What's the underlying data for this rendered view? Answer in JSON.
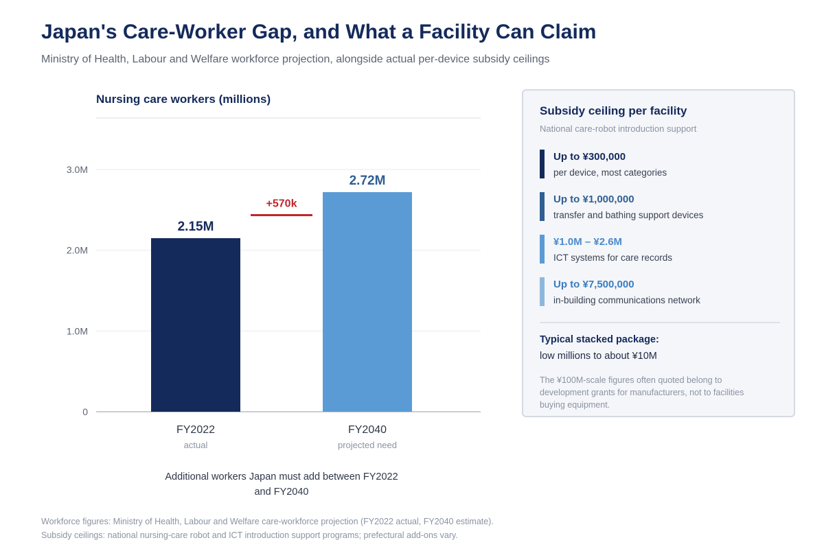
{
  "header": {
    "title": "Japan's Care-Worker Gap, and What a Facility Can Claim",
    "subtitle": "Ministry of Health, Labour and Welfare workforce projection, alongside actual per-device subsidy ceilings"
  },
  "chart_data": {
    "type": "bar",
    "title": "Nursing care workers (millions)",
    "categories": [
      "FY2022",
      "FY2040"
    ],
    "category_sublabels": [
      "actual",
      "projected need"
    ],
    "values": [
      2.15,
      2.72
    ],
    "value_labels": [
      "2.15M",
      "2.72M"
    ],
    "bar_colors": [
      "#142a5b",
      "#5b9bd5"
    ],
    "ylim": [
      0,
      3.4
    ],
    "yticks": [
      0,
      1.0,
      2.0,
      3.0
    ],
    "ytick_labels": [
      "0",
      "1.0M",
      "2.0M",
      "3.0M"
    ],
    "gridlines": true,
    "gap_annotation": {
      "label": "+570k",
      "color": "#c0262d"
    },
    "note": "Additional workers Japan must add between FY2022 and FY2040"
  },
  "panel": {
    "title": "Subsidy ceiling per facility",
    "subtitle": "National care-robot introduction support",
    "tiers": [
      {
        "amount": "Up to ¥300,000",
        "desc": "per device, most categories",
        "color": "#142a5b"
      },
      {
        "amount": "Up to ¥1,000,000",
        "desc": "transfer and bathing support devices",
        "color": "#2f5f93"
      },
      {
        "amount": "¥1.0M – ¥2.6M",
        "desc": "ICT systems for care records",
        "color": "#5b9bd5"
      },
      {
        "amount": "Up to ¥7,500,000",
        "desc": "in-building communications network",
        "color": "#8db8de"
      }
    ],
    "package_label": "Typical stacked package:",
    "package_value": "low millions to about ¥10M",
    "package_note": "The ¥100M-scale figures often quoted belong to development grants for manufacturers, not to facilities buying equipment."
  },
  "footer": {
    "line1": "Workforce figures: Ministry of Health, Labour and Welfare care-workforce projection (FY2022 actual, FY2040 estimate).",
    "line2": "Subsidy ceilings: national nursing-care robot and ICT introduction support programs; prefectural add-ons vary."
  }
}
